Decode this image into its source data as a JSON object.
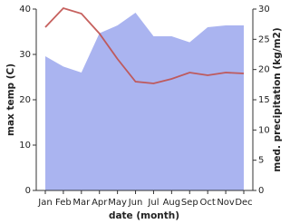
{
  "chart_data": {
    "type": "line",
    "x_label": "date (month)",
    "y_label": "max temp (C)",
    "y2_label": "med. precipitation (kg/m2)",
    "categories": [
      "Jan",
      "Feb",
      "Mar",
      "Apr",
      "May",
      "Jun",
      "Jul",
      "Aug",
      "Sep",
      "Oct",
      "Nov",
      "Dec"
    ],
    "series": [
      {
        "name": "max temp",
        "type": "line",
        "color": "#c0504d",
        "axis": "y",
        "values": [
          36,
          40.2,
          39,
          34.6,
          29,
          24,
          23.6,
          24.6,
          26,
          25.4,
          26,
          25.8
        ]
      },
      {
        "name": "precipitation",
        "type": "area",
        "color": "#aab4f0",
        "axis": "y2",
        "values": [
          22.2,
          20.5,
          19.5,
          26,
          27.3,
          29.4,
          25.5,
          25.5,
          24.5,
          27,
          27.3,
          27.3
        ]
      }
    ],
    "ylim": [
      0,
      40
    ],
    "yticks": [
      0,
      10,
      20,
      30,
      40
    ],
    "y2lim": [
      0,
      30
    ],
    "y2ticks": [
      0,
      5,
      10,
      15,
      20,
      25,
      30
    ],
    "grid": false
  }
}
